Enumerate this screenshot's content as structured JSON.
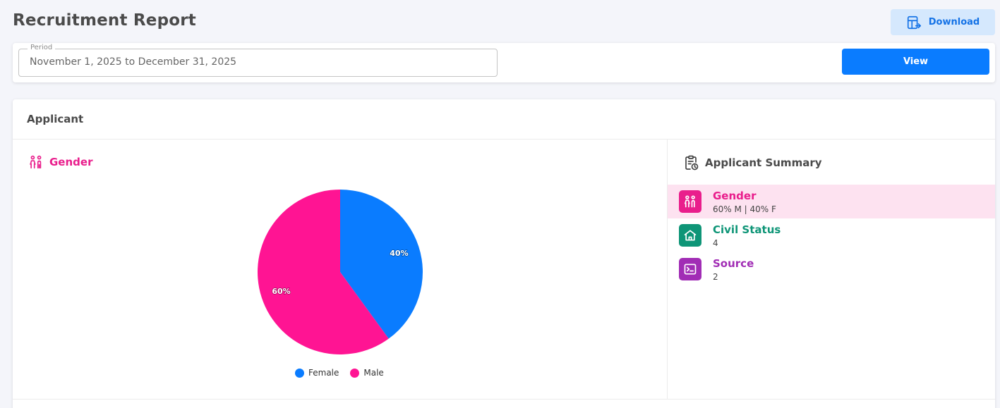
{
  "header": {
    "title": "Recruitment Report",
    "download_label": "Download"
  },
  "filter": {
    "period_label": "Period",
    "period_value": "November 1, 2025 to December 31, 2025",
    "view_label": "View"
  },
  "applicant": {
    "title": "Applicant",
    "gender_heading": "Gender",
    "summary_heading": "Applicant Summary",
    "summary_items": [
      {
        "label": "Gender",
        "value": "60% M | 40% F",
        "color": "#e91e8c",
        "icon": "people-icon"
      },
      {
        "label": "Civil Status",
        "value": "4",
        "color": "#0e9577",
        "icon": "home-icon"
      },
      {
        "label": "Source",
        "value": "2",
        "color": "#a12db5",
        "icon": "id-card-icon"
      }
    ]
  },
  "chart_data": {
    "type": "pie",
    "categories": [
      "Female",
      "Male"
    ],
    "values": [
      40,
      60
    ],
    "labels": [
      "40%",
      "60%"
    ],
    "colors": [
      "#0a7cff",
      "#ff1493"
    ],
    "legend": "bottom"
  }
}
